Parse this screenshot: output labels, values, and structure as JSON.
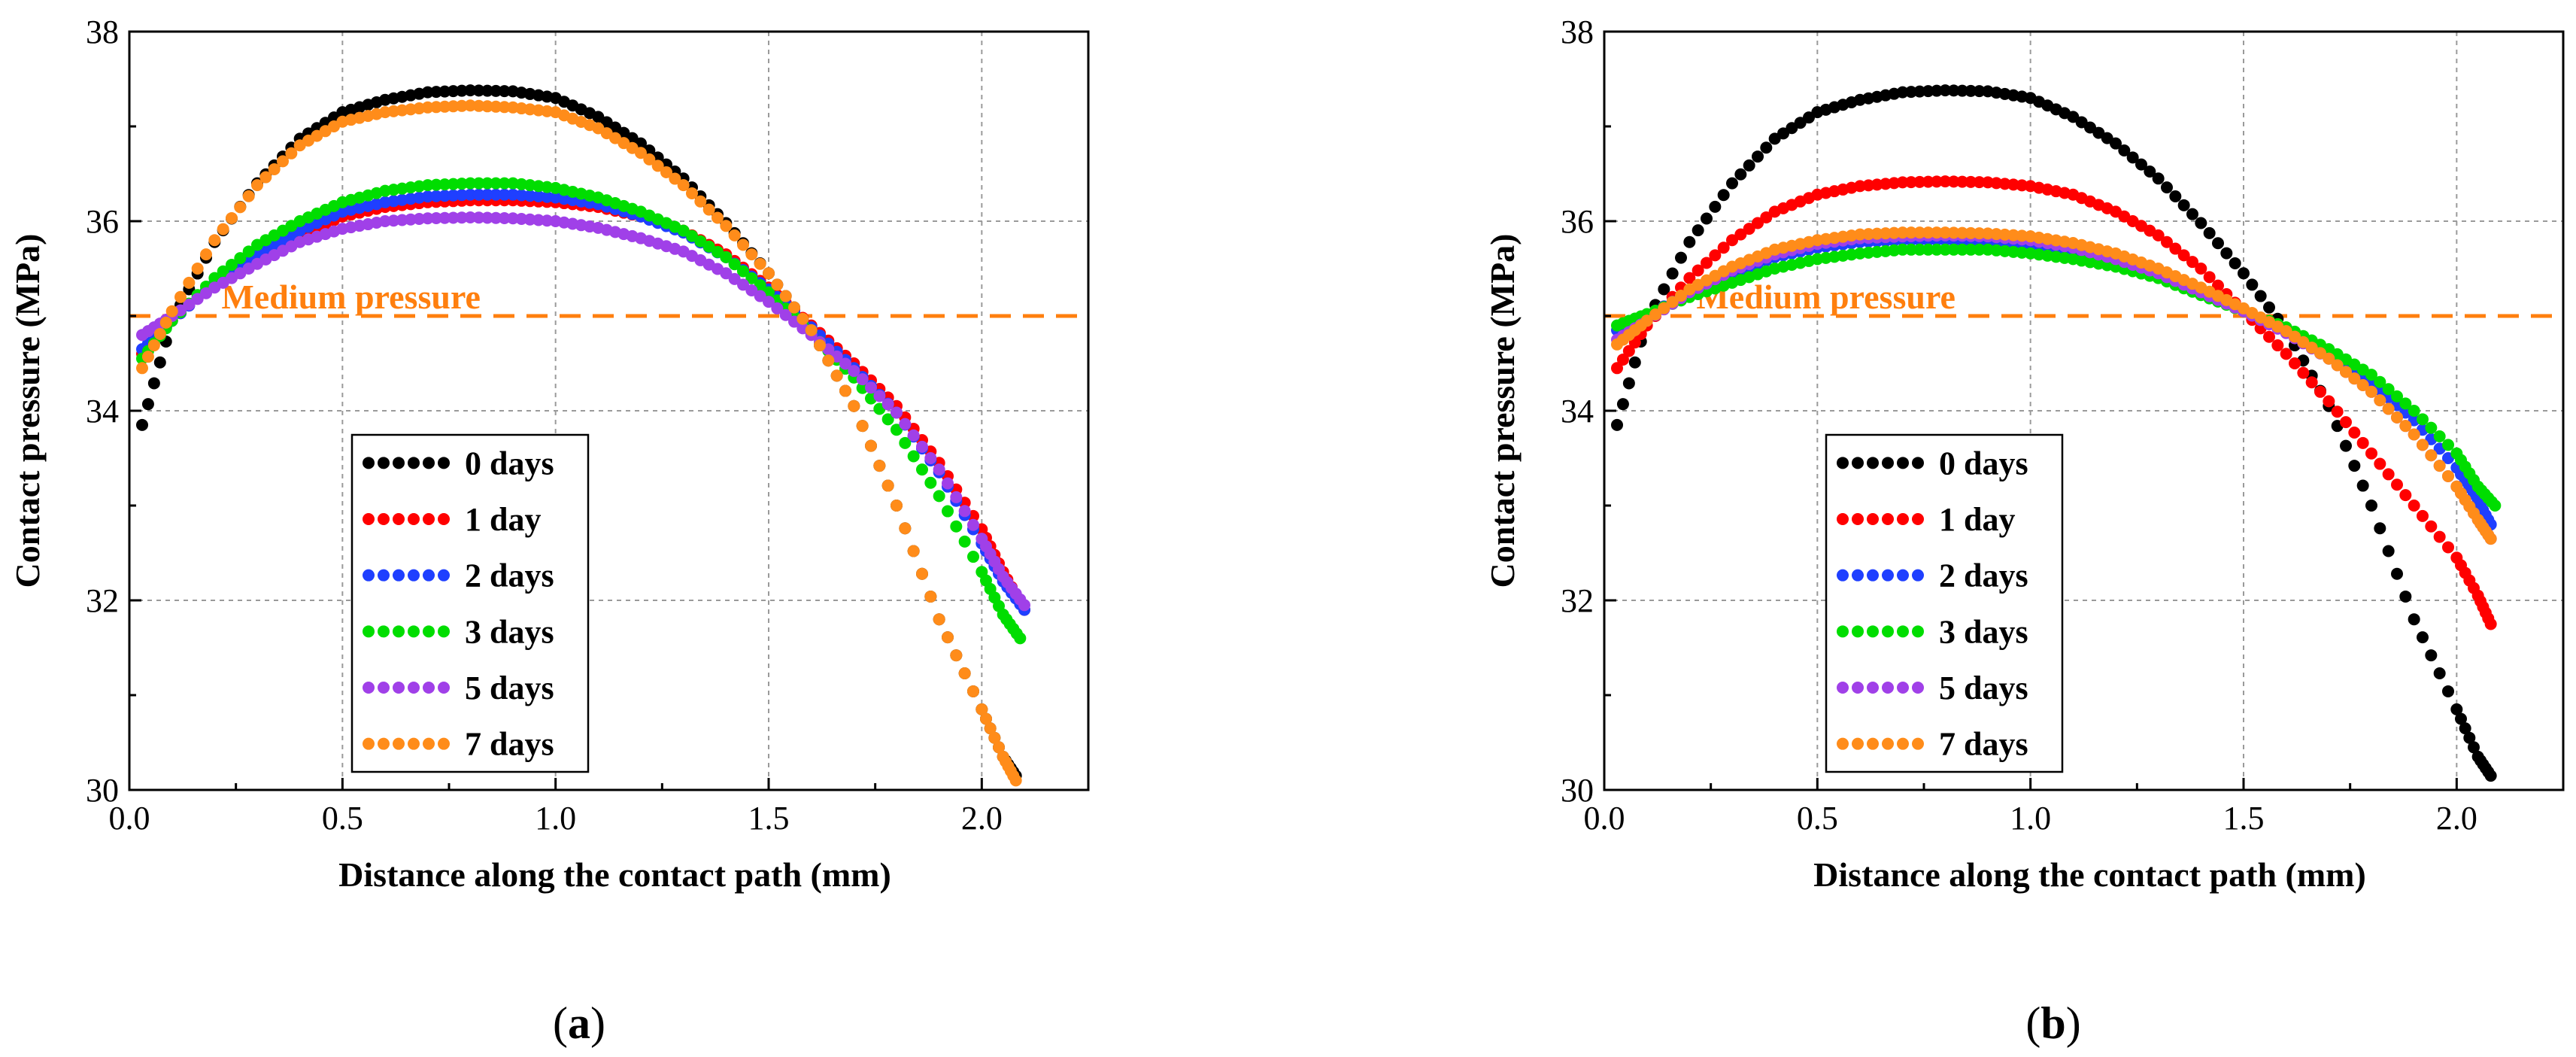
{
  "chart_data": [
    {
      "type": "scatter",
      "panel": "a",
      "caption": "a",
      "xlabel": "Distance along the contact path (mm)",
      "ylabel": "Contact pressure (MPa)",
      "xlim": [
        0.0,
        2.25
      ],
      "ylim": [
        30,
        38
      ],
      "xticks": [
        "0.0",
        "0.5",
        "1.0",
        "1.5",
        "2.0"
      ],
      "yticks": [
        "30",
        "32",
        "34",
        "36",
        "38"
      ],
      "grid": true,
      "legend": "lower-left",
      "reference_line": {
        "y": 35,
        "label": "Medium pressure",
        "color": "#ff7f0e"
      },
      "series": [
        {
          "name": "0 days",
          "color": "#000000",
          "x": [
            0.03,
            0.1,
            0.2,
            0.3,
            0.4,
            0.5,
            0.6,
            0.7,
            0.8,
            0.9,
            1.0,
            1.1,
            1.2,
            1.3,
            1.4,
            1.5,
            1.6,
            1.7,
            1.8,
            1.9,
            2.0,
            2.05,
            2.08
          ],
          "y": [
            33.85,
            34.95,
            35.78,
            36.4,
            36.87,
            37.15,
            37.28,
            37.36,
            37.38,
            37.37,
            37.3,
            37.1,
            36.82,
            36.45,
            35.98,
            35.45,
            34.85,
            34.05,
            33.0,
            31.8,
            30.85,
            30.35,
            30.15
          ]
        },
        {
          "name": "1 day",
          "color": "#ff0000",
          "x": [
            0.03,
            0.1,
            0.2,
            0.3,
            0.4,
            0.5,
            0.6,
            0.7,
            0.8,
            0.9,
            1.0,
            1.1,
            1.2,
            1.3,
            1.4,
            1.5,
            1.6,
            1.7,
            1.8,
            1.9,
            2.0,
            2.05,
            2.1
          ],
          "y": [
            34.6,
            34.95,
            35.35,
            35.6,
            35.85,
            36.05,
            36.15,
            36.2,
            36.22,
            36.22,
            36.2,
            36.15,
            36.05,
            35.9,
            35.65,
            35.3,
            34.9,
            34.5,
            34.05,
            33.45,
            32.75,
            32.3,
            31.9
          ]
        },
        {
          "name": "2 days",
          "color": "#1f3fff",
          "x": [
            0.03,
            0.1,
            0.2,
            0.3,
            0.4,
            0.5,
            0.6,
            0.7,
            0.8,
            0.9,
            1.0,
            1.1,
            1.2,
            1.3,
            1.4,
            1.5,
            1.6,
            1.7,
            1.8,
            1.9,
            2.0,
            2.05,
            2.1
          ],
          "y": [
            34.65,
            34.95,
            35.35,
            35.65,
            35.9,
            36.1,
            36.2,
            36.26,
            36.28,
            36.28,
            36.25,
            36.18,
            36.05,
            35.88,
            35.62,
            35.28,
            34.88,
            34.45,
            33.98,
            33.35,
            32.6,
            32.2,
            31.9
          ]
        },
        {
          "name": "3 days",
          "color": "#00dd00",
          "x": [
            0.03,
            0.1,
            0.2,
            0.3,
            0.4,
            0.5,
            0.6,
            0.7,
            0.8,
            0.9,
            1.0,
            1.1,
            1.2,
            1.3,
            1.4,
            1.5,
            1.6,
            1.7,
            1.8,
            1.9,
            2.0,
            2.05,
            2.09
          ],
          "y": [
            34.55,
            34.95,
            35.4,
            35.75,
            36.0,
            36.2,
            36.32,
            36.38,
            36.4,
            36.4,
            36.35,
            36.25,
            36.1,
            35.9,
            35.62,
            35.25,
            34.82,
            34.35,
            33.8,
            33.1,
            32.3,
            31.85,
            31.6
          ]
        },
        {
          "name": "5 days",
          "color": "#a040e8",
          "x": [
            0.03,
            0.1,
            0.2,
            0.3,
            0.4,
            0.5,
            0.6,
            0.7,
            0.8,
            0.9,
            1.0,
            1.1,
            1.2,
            1.3,
            1.4,
            1.5,
            1.6,
            1.7,
            1.8,
            1.9,
            2.0,
            2.05,
            2.1
          ],
          "y": [
            34.8,
            35.0,
            35.3,
            35.55,
            35.78,
            35.92,
            36.0,
            36.03,
            36.04,
            36.03,
            36.0,
            35.93,
            35.82,
            35.68,
            35.45,
            35.15,
            34.8,
            34.42,
            33.98,
            33.38,
            32.65,
            32.25,
            31.95
          ]
        },
        {
          "name": "7 days",
          "color": "#ff8c1a",
          "x": [
            0.03,
            0.1,
            0.2,
            0.3,
            0.4,
            0.5,
            0.6,
            0.7,
            0.8,
            0.9,
            1.0,
            1.1,
            1.2,
            1.3,
            1.4,
            1.5,
            1.6,
            1.7,
            1.8,
            1.9,
            2.0,
            2.05,
            2.08
          ],
          "y": [
            34.45,
            35.05,
            35.8,
            36.38,
            36.8,
            37.05,
            37.15,
            37.2,
            37.22,
            37.2,
            37.15,
            36.98,
            36.72,
            36.38,
            35.95,
            35.45,
            34.85,
            34.05,
            33.0,
            31.8,
            30.85,
            30.35,
            30.1
          ]
        }
      ]
    },
    {
      "type": "scatter",
      "panel": "b",
      "caption": "b",
      "xlabel": "Distance along the contact path (mm)",
      "ylabel": "Contact pressure (MPa)",
      "xlim": [
        0.0,
        2.25
      ],
      "ylim": [
        30,
        38
      ],
      "xticks": [
        "0.0",
        "0.5",
        "1.0",
        "1.5",
        "2.0"
      ],
      "yticks": [
        "30",
        "32",
        "34",
        "36",
        "38"
      ],
      "grid": true,
      "legend": "lower-left",
      "reference_line": {
        "y": 35,
        "label": "Medium pressure",
        "color": "#ff7f0e"
      },
      "series": [
        {
          "name": "0 days",
          "color": "#000000",
          "x": [
            0.03,
            0.1,
            0.2,
            0.3,
            0.4,
            0.5,
            0.6,
            0.7,
            0.8,
            0.9,
            1.0,
            1.1,
            1.2,
            1.3,
            1.4,
            1.5,
            1.6,
            1.7,
            1.8,
            1.9,
            2.0,
            2.05,
            2.08
          ],
          "y": [
            33.85,
            34.95,
            35.78,
            36.4,
            36.87,
            37.15,
            37.28,
            37.36,
            37.38,
            37.37,
            37.3,
            37.1,
            36.82,
            36.45,
            35.98,
            35.45,
            34.85,
            34.05,
            33.0,
            31.8,
            30.85,
            30.35,
            30.15
          ]
        },
        {
          "name": "1 day",
          "color": "#ff0000",
          "x": [
            0.03,
            0.1,
            0.2,
            0.3,
            0.4,
            0.5,
            0.6,
            0.7,
            0.8,
            0.9,
            1.0,
            1.1,
            1.2,
            1.3,
            1.4,
            1.5,
            1.6,
            1.7,
            1.8,
            1.9,
            2.0,
            2.05,
            2.08
          ],
          "y": [
            34.45,
            34.9,
            35.4,
            35.8,
            36.1,
            36.28,
            36.37,
            36.41,
            36.42,
            36.41,
            36.37,
            36.28,
            36.1,
            35.85,
            35.5,
            35.05,
            34.6,
            34.1,
            33.55,
            33.0,
            32.45,
            32.05,
            31.75
          ]
        },
        {
          "name": "2 days",
          "color": "#1f3fff",
          "x": [
            0.03,
            0.1,
            0.2,
            0.3,
            0.4,
            0.5,
            0.6,
            0.7,
            0.8,
            0.9,
            1.0,
            1.1,
            1.2,
            1.3,
            1.4,
            1.5,
            1.6,
            1.7,
            1.8,
            1.9,
            2.0,
            2.05,
            2.08
          ],
          "y": [
            34.85,
            35.0,
            35.25,
            35.45,
            35.62,
            35.72,
            35.78,
            35.8,
            35.8,
            35.78,
            35.75,
            35.7,
            35.6,
            35.45,
            35.25,
            35.05,
            34.85,
            34.6,
            34.3,
            33.9,
            33.4,
            33.05,
            32.8
          ]
        },
        {
          "name": "3 days",
          "color": "#00dd00",
          "x": [
            0.03,
            0.1,
            0.2,
            0.3,
            0.4,
            0.5,
            0.6,
            0.7,
            0.8,
            0.9,
            1.0,
            1.1,
            1.2,
            1.3,
            1.4,
            1.5,
            1.6,
            1.7,
            1.8,
            1.9,
            2.0,
            2.05,
            2.09
          ],
          "y": [
            34.9,
            35.02,
            35.2,
            35.35,
            35.5,
            35.6,
            35.66,
            35.7,
            35.7,
            35.7,
            35.66,
            35.6,
            35.52,
            35.4,
            35.22,
            35.05,
            34.88,
            34.65,
            34.38,
            34.0,
            33.55,
            33.2,
            33.0
          ]
        },
        {
          "name": "5 days",
          "color": "#a040e8",
          "x": [
            0.03,
            0.1,
            0.2,
            0.3,
            0.4,
            0.5,
            0.6,
            0.7,
            0.8,
            0.9,
            1.0,
            1.1,
            1.2,
            1.3,
            1.4,
            1.5,
            1.6,
            1.7,
            1.8,
            1.9,
            2.0,
            2.05,
            2.08
          ],
          "y": [
            34.75,
            34.95,
            35.25,
            35.48,
            35.65,
            35.76,
            35.82,
            35.84,
            35.85,
            35.84,
            35.8,
            35.72,
            35.6,
            35.45,
            35.25,
            35.05,
            34.82,
            34.55,
            34.2,
            33.75,
            33.2,
            32.85,
            32.65
          ]
        },
        {
          "name": "7 days",
          "color": "#ff8c1a",
          "x": [
            0.03,
            0.1,
            0.2,
            0.3,
            0.4,
            0.5,
            0.6,
            0.7,
            0.8,
            0.9,
            1.0,
            1.1,
            1.2,
            1.3,
            1.4,
            1.5,
            1.6,
            1.7,
            1.8,
            1.9,
            2.0,
            2.05,
            2.08
          ],
          "y": [
            34.7,
            34.95,
            35.28,
            35.52,
            35.7,
            35.8,
            35.86,
            35.88,
            35.88,
            35.87,
            35.84,
            35.77,
            35.66,
            35.5,
            35.3,
            35.08,
            34.84,
            34.55,
            34.2,
            33.75,
            33.2,
            32.85,
            32.65
          ]
        }
      ]
    }
  ]
}
